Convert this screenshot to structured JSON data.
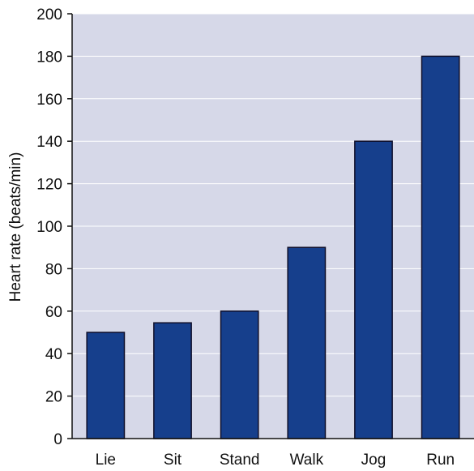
{
  "chart_data": {
    "type": "bar",
    "categories": [
      "Lie",
      "Sit",
      "Stand",
      "Walk",
      "Jog",
      "Run"
    ],
    "values": [
      50,
      54.5,
      60,
      90,
      140,
      180
    ],
    "title": "",
    "xlabel": "",
    "ylabel": "Heart rate (beats/min)",
    "ylim": [
      0,
      200
    ],
    "yticks": [
      "0",
      "20",
      "40",
      "60",
      "80",
      "100",
      "120",
      "140",
      "160",
      "180",
      "200"
    ],
    "grid": true,
    "colors": {
      "plot_background": "#d6d8e8",
      "bar_fill": "#163f8c",
      "bar_stroke": "#0f0f2a",
      "grid": "#ffffff",
      "axis": "#111111"
    }
  }
}
